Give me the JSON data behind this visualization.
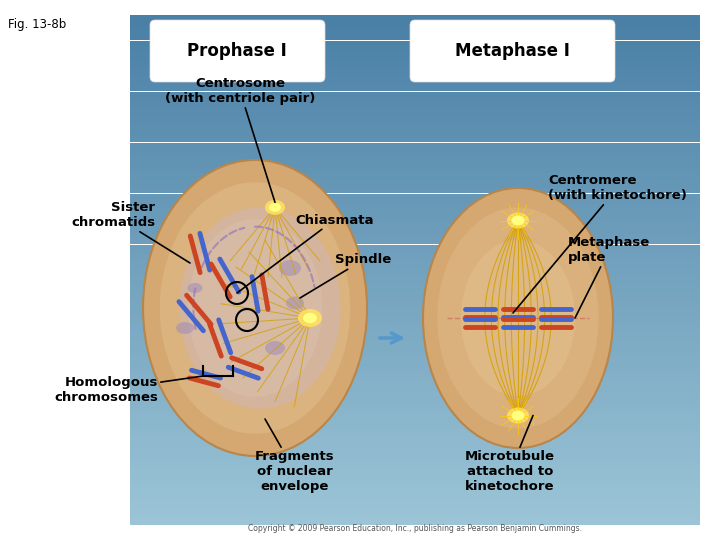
{
  "fig_label": "Fig. 13-8b",
  "title_prophase": "Prophase I",
  "title_metaphase": "Metaphase I",
  "labels": {
    "centrosome": "Centrosome\n(with centriole pair)",
    "sister_chromatids": "Sister\nchromatids",
    "chiasmata": "Chiasmata",
    "spindle": "Spindle",
    "centromere": "Centromere\n(with kinetochore)",
    "metaphase_plate": "Metaphase\nplate",
    "homologous": "Homologous\nchromosomes",
    "fragments": "Fragments\nof nuclear\nenvelope",
    "microtubule": "Microtubule\nattached to\nkinetochore"
  },
  "copyright": "Copyright © 2009 Pearson Education, Inc., publishing as Pearson Benjamin Cummings."
}
